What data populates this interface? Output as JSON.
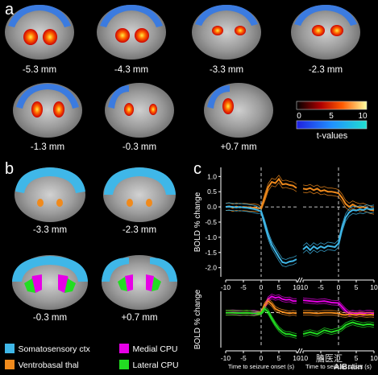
{
  "panels": {
    "a": "a",
    "b": "b",
    "c": "c"
  },
  "panel_a": {
    "slices": [
      "-5.3 mm",
      "-4.3 mm",
      "-3.3 mm",
      "-2.3 mm",
      "-1.3 mm",
      "-0.3 mm",
      "+0.7 mm"
    ],
    "colorbar": {
      "ticks": [
        "0",
        "5",
        "10"
      ],
      "label": "t-values"
    }
  },
  "panel_b": {
    "slices": [
      "-3.3 mm",
      "-2.3 mm",
      "-0.3 mm",
      "+0.7 mm"
    ],
    "legend": [
      {
        "label": "Somatosensory ctx",
        "color": "#3fb7e8"
      },
      {
        "label": "Medial CPU",
        "color": "#e600e6"
      },
      {
        "label": "Ventrobasal thal",
        "color": "#f08a1c"
      },
      {
        "label": "Lateral CPU",
        "color": "#22dd22"
      }
    ]
  },
  "chart_data": [
    {
      "type": "line",
      "ylabel": "BOLD % change",
      "ylim": [
        -2.3,
        1.3
      ],
      "yticks": [
        1.0,
        0.5,
        0.0,
        -0.5,
        -1.0,
        -1.5,
        -2.0
      ],
      "xticks": [
        -10,
        -5,
        0,
        5,
        10
      ],
      "series": [
        {
          "color": "#f08a1c",
          "onset": {
            "x": [
              -10,
              -9,
              -8,
              -7,
              -6,
              -5,
              -4,
              -3,
              -2,
              -1,
              0,
              1,
              2,
              3,
              4,
              5,
              6,
              7,
              8,
              9,
              10
            ],
            "y": [
              0,
              0.02,
              -0.03,
              0.01,
              -0.02,
              0.0,
              -0.01,
              -0.03,
              -0.02,
              -0.04,
              -0.05,
              0.3,
              0.65,
              0.82,
              0.78,
              0.92,
              0.74,
              0.76,
              0.72,
              0.7,
              0.62
            ]
          },
          "offset": {
            "x": [
              -10,
              -9,
              -8,
              -7,
              -6,
              -5,
              -4,
              -3,
              -2,
              -1,
              0,
              1,
              2,
              3,
              4,
              5,
              6,
              7,
              8,
              9,
              10
            ],
            "y": [
              0.6,
              0.58,
              0.62,
              0.55,
              0.6,
              0.52,
              0.55,
              0.5,
              0.5,
              0.48,
              0.45,
              0.3,
              0.1,
              0.0,
              0.08,
              0.02,
              -0.02,
              0.0,
              -0.05,
              -0.1,
              -0.12
            ]
          }
        },
        {
          "color": "#3fb7e8",
          "onset": {
            "x": [
              -10,
              -9,
              -8,
              -7,
              -6,
              -5,
              -4,
              -3,
              -2,
              -1,
              0,
              1,
              2,
              3,
              4,
              5,
              6,
              7,
              8,
              9,
              10
            ],
            "y": [
              0,
              0.01,
              0.0,
              -0.02,
              0.0,
              -0.02,
              -0.03,
              -0.05,
              -0.07,
              -0.1,
              -0.15,
              -0.55,
              -0.95,
              -1.25,
              -1.45,
              -1.65,
              -1.82,
              -1.85,
              -1.8,
              -1.78,
              -1.72
            ]
          },
          "offset": {
            "x": [
              -10,
              -9,
              -8,
              -7,
              -6,
              -5,
              -4,
              -3,
              -2,
              -1,
              0,
              1,
              2,
              3,
              4,
              5,
              6,
              7,
              8,
              9,
              10
            ],
            "y": [
              -1.4,
              -1.3,
              -1.42,
              -1.3,
              -1.38,
              -1.3,
              -1.35,
              -1.28,
              -1.3,
              -1.32,
              -1.2,
              -0.7,
              -0.35,
              -0.18,
              -0.1,
              -0.12,
              -0.08,
              -0.1,
              -0.05,
              -0.08,
              -0.06
            ]
          }
        }
      ]
    },
    {
      "type": "line",
      "ylabel": "BOLD % change",
      "xlabel_onset": "Time to seizure onset (s)",
      "xlabel_offset": "Time to seizure offset (s)",
      "ylim": [
        -0.9,
        0.55
      ],
      "xticks": [
        -10,
        -5,
        0,
        5,
        10
      ],
      "series": [
        {
          "color": "#e600e6",
          "onset": {
            "x": [
              -10,
              -8,
              -6,
              -4,
              -2,
              0,
              1,
              2,
              3,
              4,
              5,
              6,
              7,
              8,
              9,
              10
            ],
            "y": [
              0,
              0.01,
              0.0,
              -0.01,
              0.0,
              0.0,
              0.15,
              0.35,
              0.42,
              0.38,
              0.4,
              0.35,
              0.33,
              0.34,
              0.3,
              0.3
            ]
          },
          "offset": {
            "x": [
              -10,
              -8,
              -6,
              -4,
              -2,
              0,
              1,
              2,
              3,
              4,
              5,
              6,
              7,
              8,
              9,
              10
            ],
            "y": [
              0.32,
              0.3,
              0.28,
              0.3,
              0.26,
              0.25,
              0.15,
              0.05,
              -0.02,
              0.0,
              -0.02,
              0.0,
              -0.02,
              0.0,
              0.0,
              -0.02
            ]
          }
        },
        {
          "color": "#f08a1c",
          "onset": {
            "x": [
              -10,
              -8,
              -6,
              -4,
              -2,
              0,
              1,
              2,
              3,
              4,
              5,
              6,
              7,
              8,
              9,
              10
            ],
            "y": [
              0,
              0.0,
              -0.01,
              0.0,
              -0.02,
              0.0,
              0.2,
              0.3,
              0.22,
              0.1,
              0.05,
              0.02,
              0.0,
              -0.02,
              0.0,
              -0.02
            ]
          },
          "offset": {
            "x": [
              -10,
              -8,
              -6,
              -4,
              -2,
              0,
              1,
              2,
              3,
              4,
              5,
              6,
              7,
              8,
              9,
              10
            ],
            "y": [
              0.0,
              0.0,
              -0.02,
              0.0,
              0.0,
              -0.02,
              -0.05,
              -0.06,
              -0.04,
              -0.05,
              -0.06,
              -0.04,
              -0.05,
              -0.06,
              -0.05,
              -0.06
            ]
          }
        },
        {
          "color": "#22dd22",
          "onset": {
            "x": [
              -10,
              -8,
              -6,
              -4,
              -2,
              0,
              1,
              2,
              3,
              4,
              5,
              6,
              7,
              8,
              9,
              10
            ],
            "y": [
              0,
              0.0,
              -0.01,
              0.0,
              -0.02,
              -0.02,
              0.1,
              0.02,
              -0.15,
              -0.3,
              -0.42,
              -0.5,
              -0.55,
              -0.55,
              -0.58,
              -0.6
            ]
          },
          "offset": {
            "x": [
              -10,
              -8,
              -6,
              -4,
              -2,
              0,
              1,
              2,
              3,
              4,
              5,
              6,
              7,
              8,
              9,
              10
            ],
            "y": [
              -0.55,
              -0.5,
              -0.55,
              -0.45,
              -0.5,
              -0.45,
              -0.4,
              -0.32,
              -0.28,
              -0.25,
              -0.28,
              -0.3,
              -0.32,
              -0.3,
              -0.3,
              -0.32
            ]
          }
        }
      ]
    }
  ],
  "watermark": {
    "text": "脑医汇",
    "brand": "AIBrain"
  }
}
